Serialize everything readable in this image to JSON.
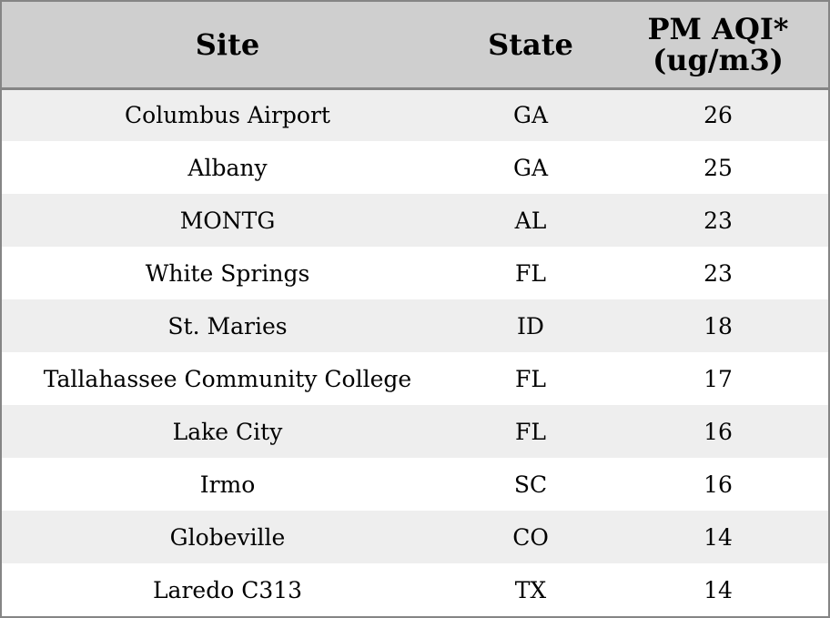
{
  "table": {
    "headers": {
      "site": "Site",
      "state": "State",
      "aqi_line1": "PM AQI*",
      "aqi_line2": "(ug/m3)"
    },
    "rows": [
      {
        "site": "Columbus Airport",
        "state": "GA",
        "aqi": "26"
      },
      {
        "site": "Albany",
        "state": "GA",
        "aqi": "25"
      },
      {
        "site": "MONTG",
        "state": "AL",
        "aqi": "23"
      },
      {
        "site": "White Springs",
        "state": "FL",
        "aqi": "23"
      },
      {
        "site": "St. Maries",
        "state": "ID",
        "aqi": "18"
      },
      {
        "site": "Tallahassee Community College",
        "state": "FL",
        "aqi": "17"
      },
      {
        "site": "Lake City",
        "state": "FL",
        "aqi": "16"
      },
      {
        "site": "Irmo",
        "state": "SC",
        "aqi": "16"
      },
      {
        "site": "Globeville",
        "state": "CO",
        "aqi": "14"
      },
      {
        "site": "Laredo C313",
        "state": "TX",
        "aqi": "14"
      }
    ]
  },
  "colors": {
    "header_bg": "#cfcfcf",
    "row_alt_bg": "#eeeeee",
    "row_bg": "#ffffff",
    "border": "#858585"
  }
}
